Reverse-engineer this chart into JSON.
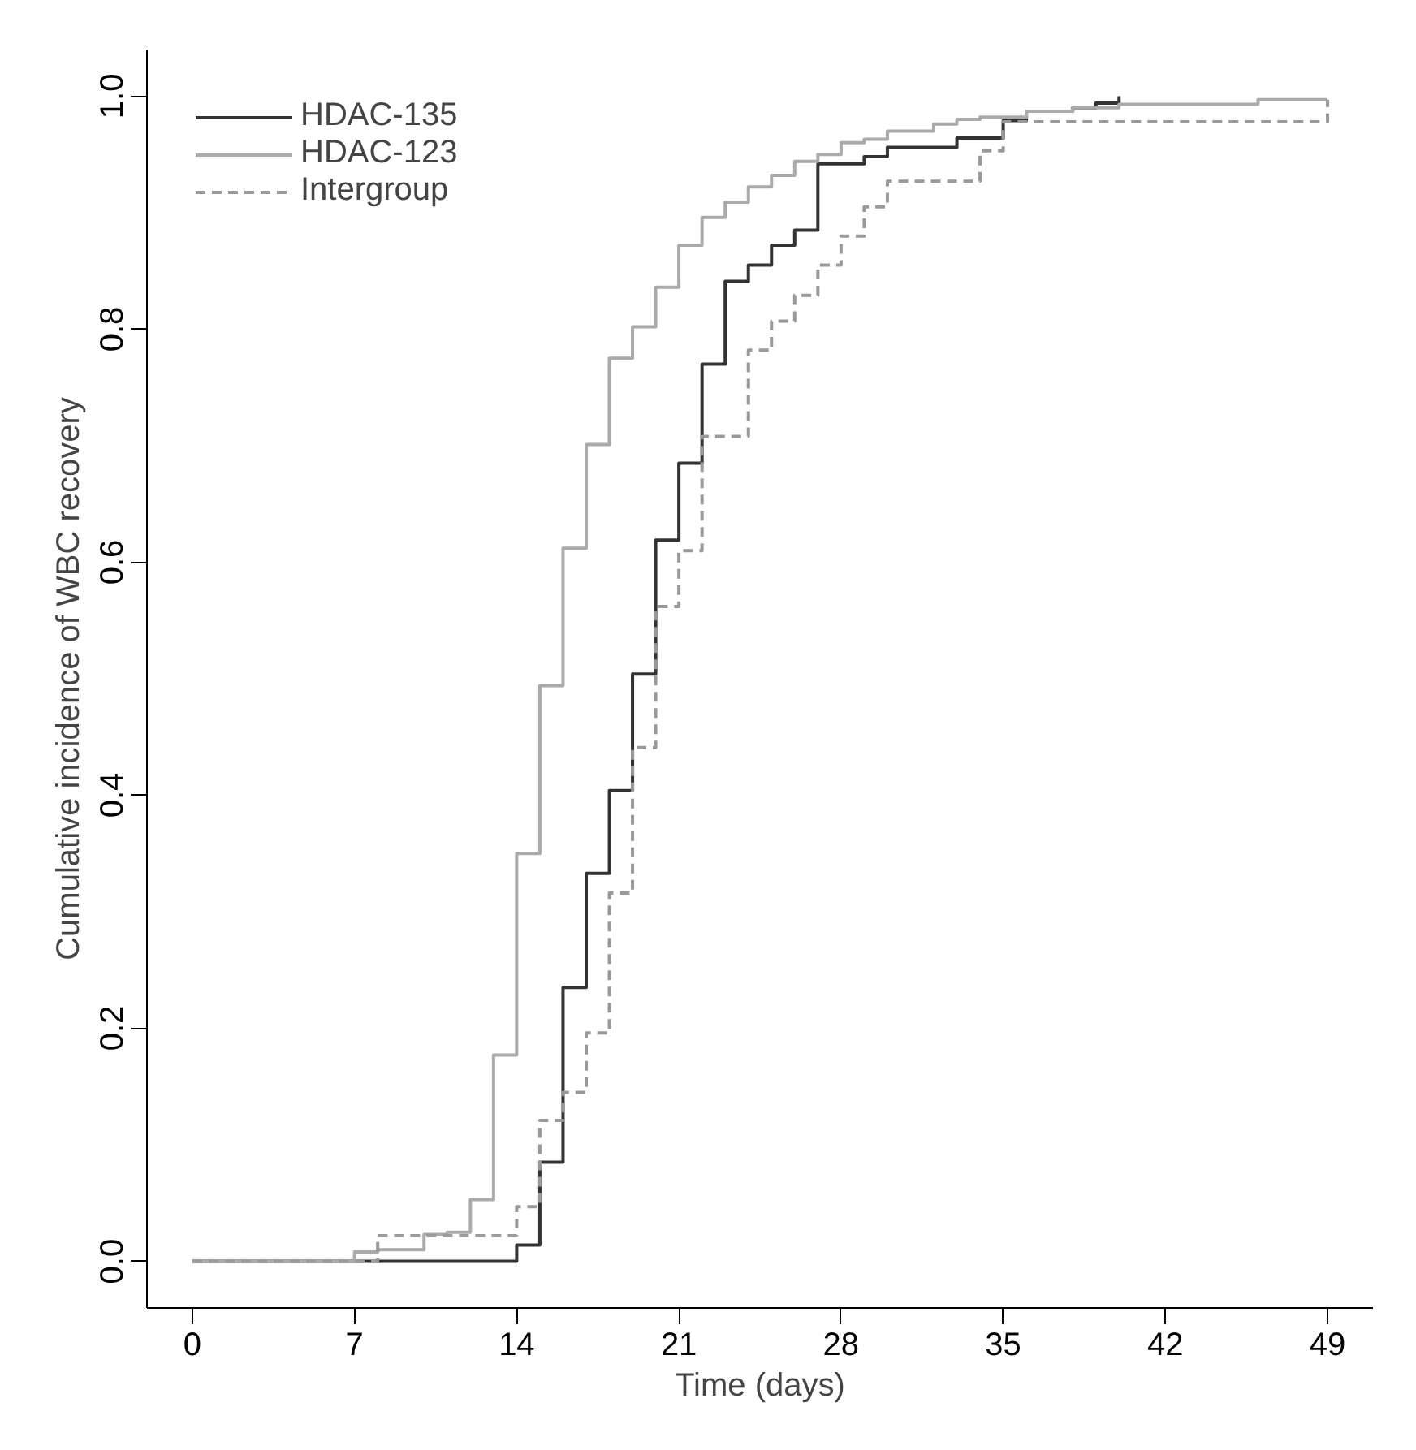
{
  "chart_data": {
    "type": "step",
    "xlabel": "Time (days)",
    "ylabel": "Cumulative incidence of WBC recovery",
    "xlim": [
      -1.96,
      50.96
    ],
    "ylim": [
      -0.04,
      1.04
    ],
    "xticks": [
      0,
      7,
      14,
      21,
      28,
      35,
      42,
      49
    ],
    "yticks": [
      {
        "value": 0,
        "label": "0.0"
      },
      {
        "value": 0.2,
        "label": "0.2"
      },
      {
        "value": 0.4,
        "label": "0.4"
      },
      {
        "value": 0.6,
        "label": "0.6"
      },
      {
        "value": 0.8,
        "label": "0.8"
      },
      {
        "value": 1,
        "label": "1.0"
      }
    ],
    "grid": false,
    "legend": "top left",
    "marker": "none",
    "series": [
      {
        "name": "HDAC-135",
        "color": "#333333",
        "line_style": "solid",
        "x": [
          0,
          14,
          15,
          16,
          17,
          18,
          19,
          20,
          21,
          22,
          23,
          24,
          25,
          26,
          27,
          29,
          30,
          33,
          35,
          36,
          38,
          39,
          40
        ],
        "values": [
          0,
          0.014,
          0.085,
          0.235,
          0.333,
          0.404,
          0.504,
          0.619,
          0.685,
          0.77,
          0.841,
          0.855,
          0.872,
          0.885,
          0.942,
          0.948,
          0.956,
          0.964,
          0.979,
          0.987,
          0.99,
          0.994,
          1.0
        ]
      },
      {
        "name": "HDAC-123",
        "color": "#aaaaaa",
        "line_style": "solid",
        "x": [
          0,
          7,
          8,
          10,
          11,
          12,
          13,
          14,
          15,
          16,
          17,
          18,
          19,
          20,
          21,
          22,
          23,
          24,
          25,
          26,
          27,
          28,
          29,
          30,
          32,
          33,
          34,
          36,
          38,
          40,
          46,
          49
        ],
        "values": [
          0,
          0.008,
          0.01,
          0.023,
          0.025,
          0.053,
          0.177,
          0.35,
          0.494,
          0.612,
          0.701,
          0.775,
          0.802,
          0.836,
          0.872,
          0.896,
          0.909,
          0.922,
          0.932,
          0.944,
          0.95,
          0.96,
          0.963,
          0.97,
          0.976,
          0.98,
          0.982,
          0.987,
          0.99,
          0.993,
          0.997,
          0.997
        ]
      },
      {
        "name": "Intergroup",
        "color": "#999999",
        "line_style": "dashed",
        "x": [
          0,
          8,
          14,
          15,
          16,
          17,
          18,
          19,
          20,
          21,
          22,
          24,
          25,
          26,
          27,
          28,
          29,
          30,
          34,
          35,
          49
        ],
        "values": [
          0,
          0.022,
          0.047,
          0.121,
          0.145,
          0.196,
          0.316,
          0.441,
          0.562,
          0.61,
          0.708,
          0.782,
          0.807,
          0.829,
          0.855,
          0.88,
          0.905,
          0.927,
          0.953,
          0.978,
          0.997
        ]
      }
    ]
  }
}
